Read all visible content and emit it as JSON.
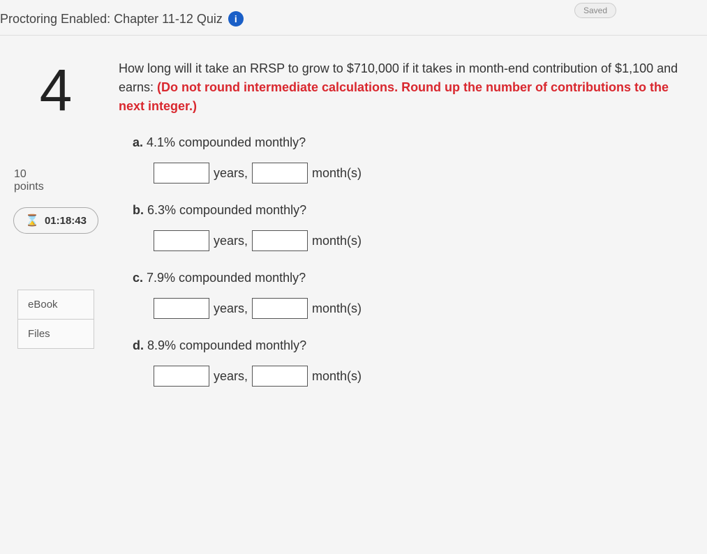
{
  "header": {
    "title": "Proctoring Enabled: Chapter 11-12 Quiz",
    "saved_label": "Saved"
  },
  "question": {
    "number": "4",
    "points_value": "10",
    "points_label": "points",
    "timer": "01:18:43",
    "text_lead": "How long will it take an RRSP to grow to $710,000 if it takes in month-end contribution of $1,100 and earns: ",
    "text_warn": "(Do not round intermediate calculations. Round up the number of contributions to the next integer.)"
  },
  "resources": {
    "ebook": "eBook",
    "files": "Files"
  },
  "parts": {
    "a": {
      "letter": "a.",
      "text": "4.1% compounded monthly?"
    },
    "b": {
      "letter": "b.",
      "text": "6.3% compounded monthly?"
    },
    "c": {
      "letter": "c.",
      "text": "7.9% compounded monthly?"
    },
    "d": {
      "letter": "d.",
      "text": "8.9% compounded monthly?"
    }
  },
  "labels": {
    "years": "years,",
    "months": "month(s)"
  },
  "colors": {
    "warn": "#d9272e",
    "info_bg": "#1a5fc7",
    "page_bg": "#f5f5f5"
  }
}
